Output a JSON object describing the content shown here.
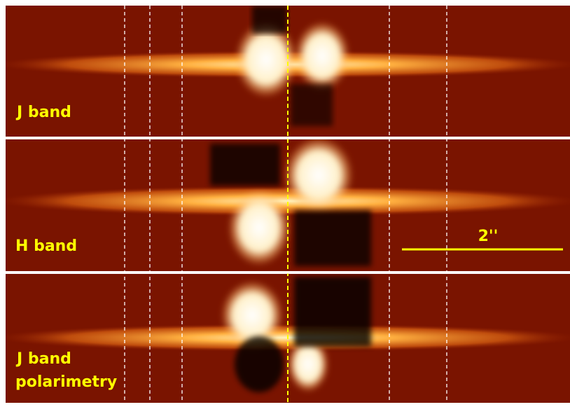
{
  "panels": [
    {
      "label": "J band"
    },
    {
      "label": "H band",
      "scale_bar": "2''"
    },
    {
      "lines": [
        "J band",
        "polarimetry"
      ]
    }
  ]
}
